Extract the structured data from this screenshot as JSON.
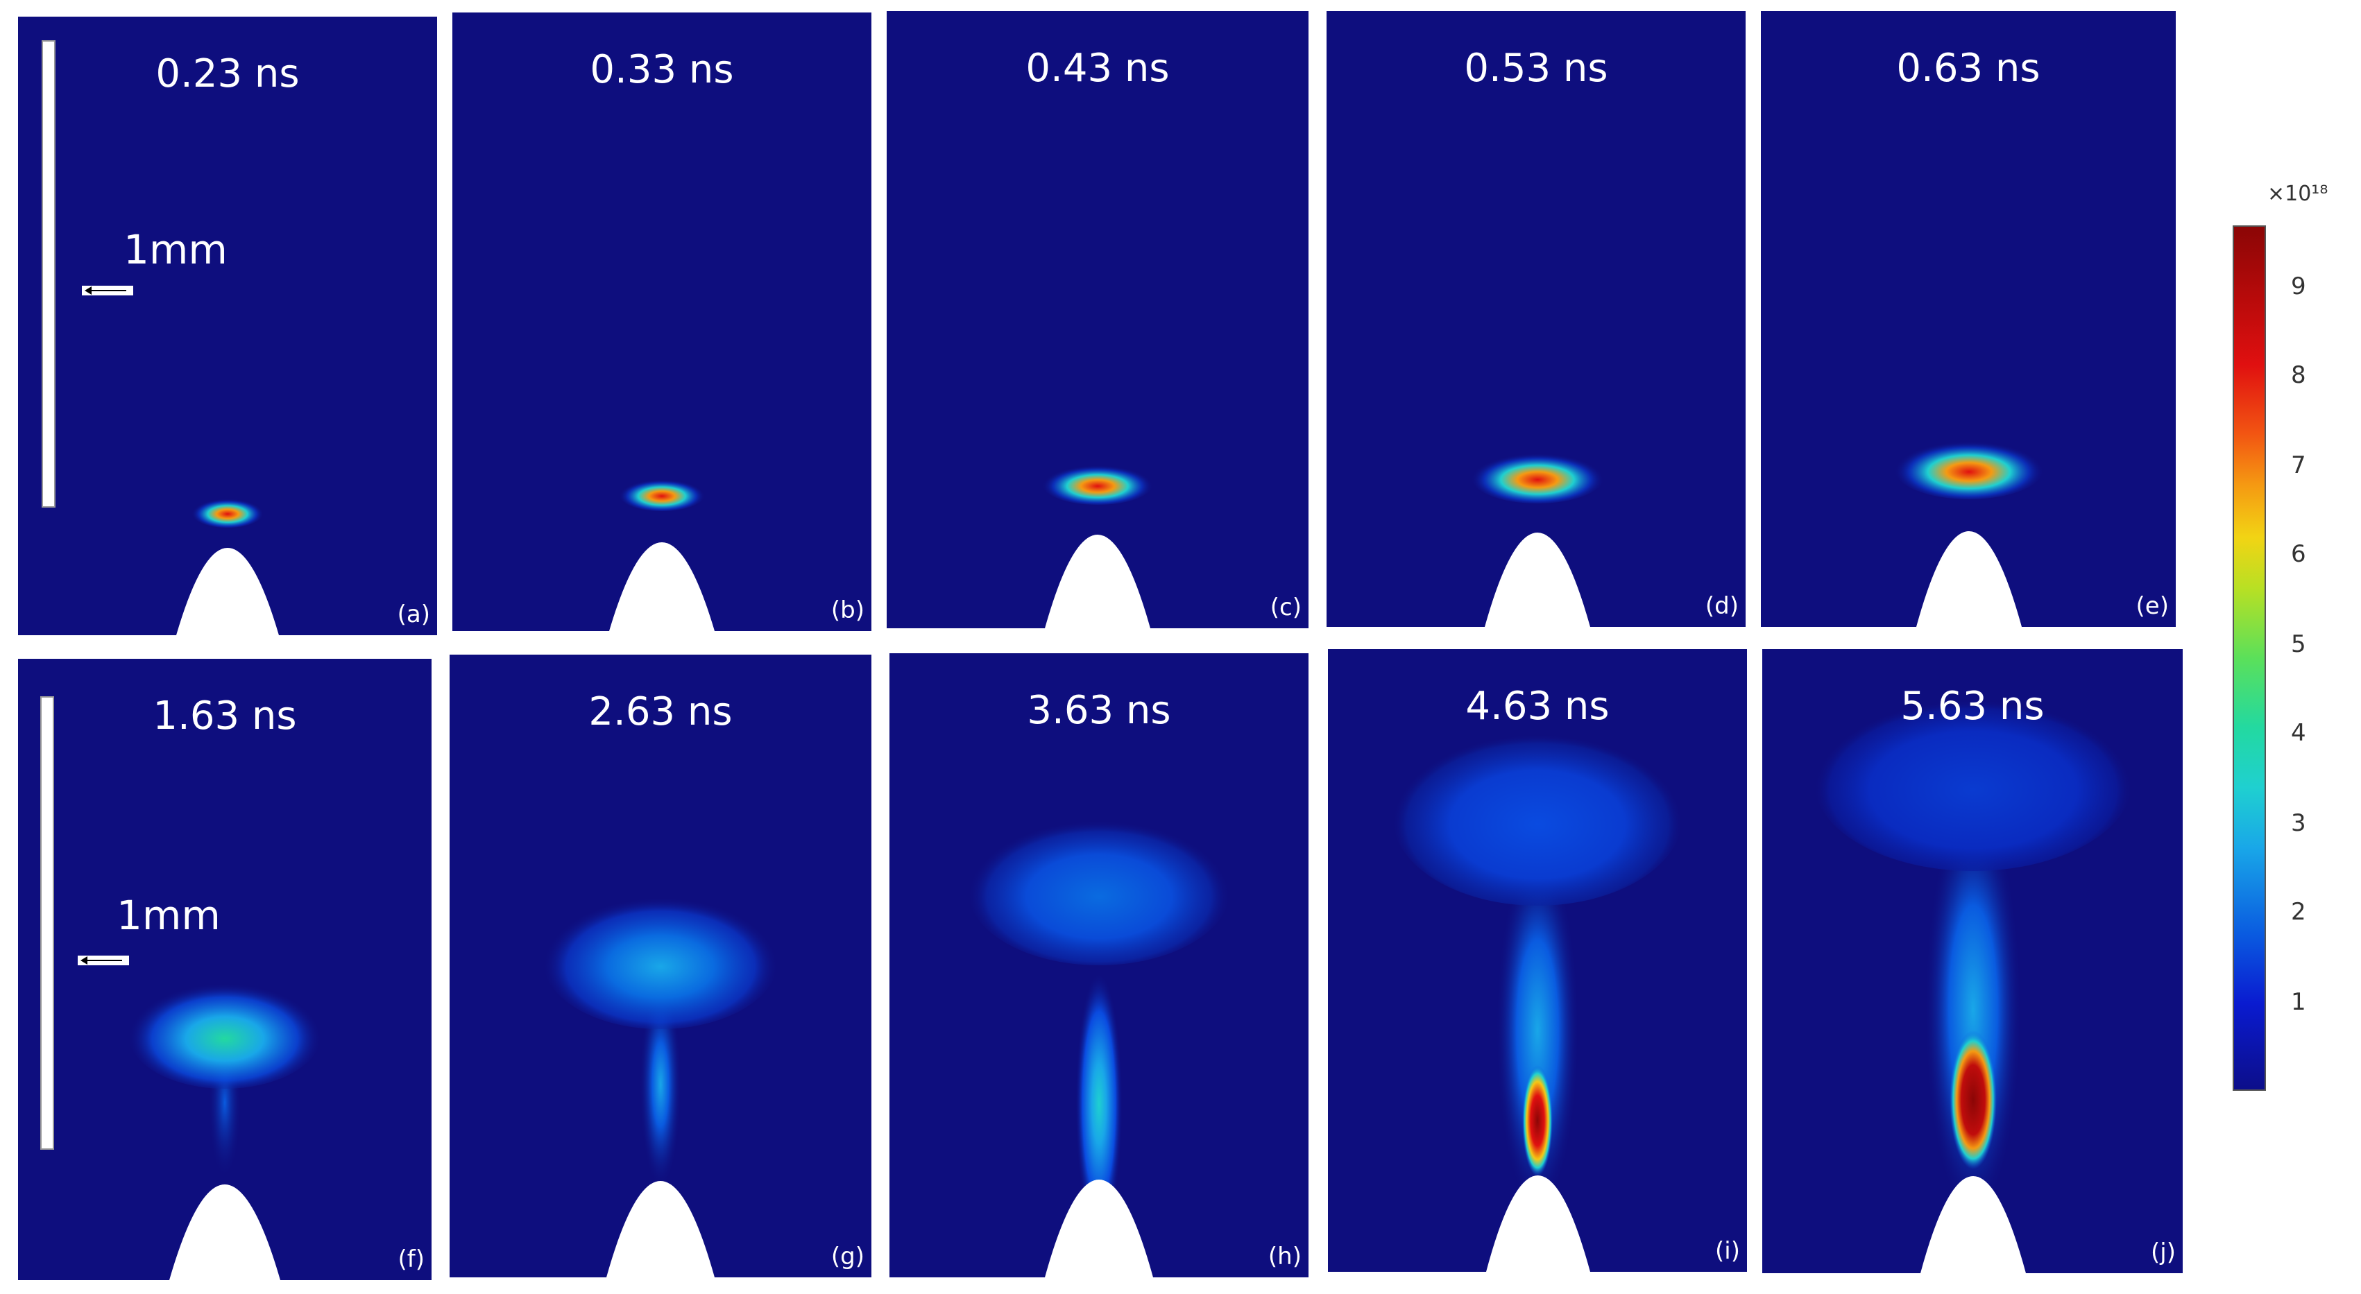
{
  "scale_label": "1mm",
  "colorbar": {
    "multiplier": "×10¹⁸",
    "ticks": [
      "9",
      "8",
      "7",
      "6",
      "5",
      "4",
      "3",
      "2",
      "1"
    ]
  },
  "panels": [
    {
      "time": "0.23 ns",
      "label": "(a)"
    },
    {
      "time": "0.33 ns",
      "label": "(b)"
    },
    {
      "time": "0.43 ns",
      "label": "(c)"
    },
    {
      "time": "0.53 ns",
      "label": "(d)"
    },
    {
      "time": "0.63 ns",
      "label": "(e)"
    },
    {
      "time": "1.63 ns",
      "label": "(f)"
    },
    {
      "time": "2.63 ns",
      "label": "(g)"
    },
    {
      "time": "3.63 ns",
      "label": "(h)"
    },
    {
      "time": "4.63 ns",
      "label": "(i)"
    },
    {
      "time": "5.63 ns",
      "label": "(j)"
    }
  ]
}
